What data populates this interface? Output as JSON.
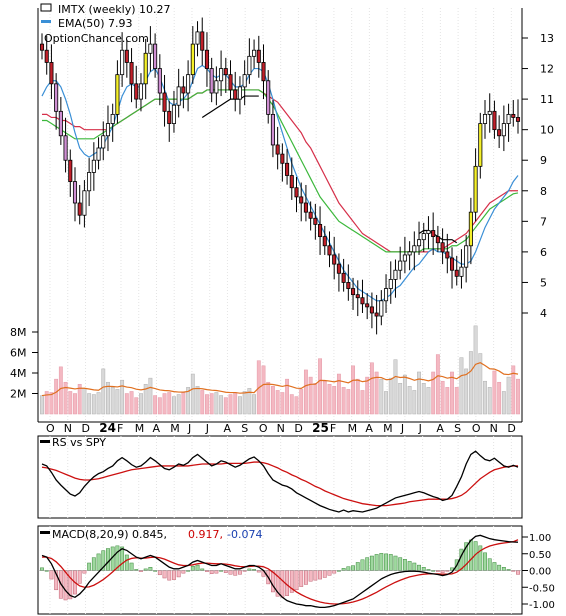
{
  "header": {
    "ticker_line": "IMTX (weekly) 10.27",
    "ema_line": "EMA(50) 7.93",
    "watermark": "OptionChance.com"
  },
  "price_axis": {
    "ticks": [
      "13",
      "12",
      "11",
      "10",
      "9",
      "8",
      "7",
      "6",
      "5",
      "4"
    ]
  },
  "volume_axis": {
    "ticks": [
      "8M",
      "6M",
      "4M",
      "2M"
    ]
  },
  "months": {
    "labels": [
      "O",
      "N",
      "D",
      "24",
      "F",
      "M",
      "A",
      "M",
      "J",
      "J",
      "A",
      "S",
      "O",
      "N",
      "D",
      "25",
      "F",
      "M",
      "A",
      "M",
      "J",
      "J",
      "A",
      "S",
      "O",
      "N",
      "D"
    ]
  },
  "rs_panel": {
    "title": "RS vs SPY"
  },
  "macd_panel": {
    "title": "MACD(8,20,9) 0.845,",
    "signal_value": "0.917,",
    "hist_value": "-0.074",
    "ticks": [
      "1.00",
      "0.50",
      "0.00",
      "-0.50",
      "-1.00"
    ]
  },
  "colors": {
    "ema_short": "#3a8fd6",
    "ema_mid": "#3cb83c",
    "ema_long": "#d6304a",
    "ema_black": "#000000",
    "candle_up": "#ffffff",
    "candle_down": "#c0202a",
    "candle_yellow": "#f5f02a",
    "candle_purple": "#cf8fd2",
    "volume_up": "#d8d8d8",
    "volume_down": "#f4b8c2",
    "volume_avg": "#e07020",
    "rs_line": "#000000",
    "rs_avg": "#cc1010",
    "macd_line": "#000000",
    "macd_signal": "#cc1010",
    "hist_pos": "#9fd89f",
    "hist_neg": "#f4b8c2",
    "signal_text": "#cc0000",
    "hist_text": "#1a40b0"
  },
  "chart_data": {
    "type": "candlestick",
    "title": "IMTX (weekly) 10.27",
    "y_range": [
      3.5,
      13.5
    ],
    "volume_range_M": [
      0,
      9
    ],
    "ema50_last": 7.93,
    "close_last": 10.27,
    "weekly_close": [
      12.6,
      12.2,
      11.5,
      10.6,
      9.8,
      9.0,
      8.3,
      7.6,
      7.2,
      8.0,
      8.6,
      9.0,
      9.4,
      9.8,
      10.2,
      10.5,
      11.8,
      12.6,
      12.2,
      11.5,
      11.0,
      11.5,
      12.5,
      12.8,
      12.0,
      11.2,
      10.6,
      10.2,
      10.8,
      11.4,
      11.2,
      11.8,
      12.8,
      13.2,
      12.6,
      12.0,
      11.2,
      11.6,
      12.0,
      11.8,
      11.3,
      11.0,
      11.4,
      11.8,
      12.4,
      12.6,
      12.2,
      11.6,
      10.5,
      9.5,
      9.2,
      8.9,
      8.5,
      8.1,
      7.8,
      7.6,
      7.3,
      7.1,
      6.9,
      6.5,
      6.2,
      5.9,
      5.6,
      5.3,
      5.0,
      4.8,
      4.6,
      4.5,
      4.3,
      4.2,
      4.0,
      3.9,
      4.4,
      4.8,
      5.1,
      5.4,
      5.7,
      5.9,
      6.0,
      6.2,
      6.4,
      6.6,
      6.7,
      6.5,
      6.3,
      6.0,
      5.8,
      5.4,
      5.2,
      5.5,
      6.2,
      7.3,
      8.8,
      10.2,
      10.5,
      10.6,
      10.0,
      9.8,
      10.2,
      10.5,
      10.4,
      10.27
    ],
    "volume_M": [
      1.8,
      2.2,
      2.1,
      3.4,
      4.6,
      3.1,
      2.2,
      2.0,
      2.9,
      2.5,
      2.0,
      1.9,
      2.1,
      4.4,
      3.1,
      2.6,
      2.4,
      3.3,
      2.0,
      2.2,
      1.6,
      2.0,
      2.9,
      3.5,
      1.8,
      1.6,
      2.0,
      2.1,
      1.7,
      1.9,
      2.1,
      2.6,
      3.9,
      2.7,
      2.3,
      1.9,
      2.0,
      2.1,
      1.8,
      1.6,
      1.9,
      2.1,
      1.7,
      2.2,
      2.5,
      1.9,
      5.2,
      4.7,
      3.1,
      2.7,
      2.3,
      2.1,
      3.4,
      1.9,
      1.7,
      2.4,
      4.3,
      3.6,
      3.0,
      5.4,
      3.2,
      2.9,
      2.7,
      3.9,
      2.6,
      2.4,
      4.7,
      3.4,
      2.3,
      3.6,
      5.0,
      4.1,
      3.4,
      2.2,
      3.5,
      5.3,
      3.0,
      3.8,
      2.7,
      2.3,
      4.1,
      3.0,
      2.6,
      4.1,
      5.8,
      3.2,
      2.6,
      4.1,
      2.6,
      5.5,
      4.4,
      6.1,
      8.6,
      5.9,
      3.2,
      2.6,
      4.2,
      3.1,
      2.2,
      3.6,
      4.7,
      3.4
    ],
    "ema_short": [
      11.1,
      11.4,
      11.6,
      11.6,
      11.4,
      11.0,
      10.5,
      9.9,
      9.4,
      9.2,
      9.1,
      9.2,
      9.3,
      9.5,
      9.8,
      10.1,
      10.6,
      11.1,
      11.4,
      11.5,
      11.4,
      11.4,
      11.6,
      11.9,
      12.0,
      11.7,
      11.3,
      10.9,
      10.8,
      10.9,
      11.0,
      11.2,
      11.6,
      12.0,
      12.1,
      12.0,
      11.8,
      11.7,
      11.8,
      11.8,
      11.6,
      11.4,
      11.4,
      11.5,
      11.8,
      12.0,
      12.0,
      11.9,
      11.5,
      11.0,
      10.4,
      9.9,
      9.4,
      8.9,
      8.5,
      8.1,
      7.8,
      7.5,
      7.2,
      6.9,
      6.6,
      6.3,
      6.0,
      5.7,
      5.4,
      5.2,
      5.0,
      4.8,
      4.7,
      4.6,
      4.5,
      4.4,
      4.4,
      4.5,
      4.6,
      4.8,
      4.9,
      5.1,
      5.3,
      5.5,
      5.6,
      5.8,
      6.0,
      6.1,
      6.0,
      6.0,
      5.9,
      5.8,
      5.7,
      5.6,
      5.6,
      5.7,
      6.0,
      6.4,
      6.8,
      7.1,
      7.4,
      7.6,
      7.8,
      8.0,
      8.3,
      8.5
    ],
    "ema_mid": [
      10.3,
      10.3,
      10.2,
      10.1,
      10.0,
      9.9,
      9.8,
      9.7,
      9.7,
      9.7,
      9.7,
      9.7,
      9.8,
      9.9,
      10.0,
      10.1,
      10.2,
      10.3,
      10.4,
      10.5,
      10.6,
      10.7,
      10.8,
      10.9,
      11.0,
      11.0,
      11.0,
      11.0,
      11.0,
      11.0,
      11.0,
      11.0,
      11.1,
      11.2,
      11.2,
      11.3,
      11.3,
      11.3,
      11.3,
      11.3,
      11.3,
      11.3,
      11.3,
      11.3,
      11.3,
      11.3,
      11.3,
      11.2,
      11.0,
      10.8,
      10.5,
      10.2,
      9.9,
      9.6,
      9.3,
      9.0,
      8.7,
      8.4,
      8.1,
      7.8,
      7.6,
      7.4,
      7.2,
      7.0,
      6.9,
      6.8,
      6.7,
      6.6,
      6.5,
      6.4,
      6.3,
      6.2,
      6.1,
      6.0,
      6.0,
      6.0,
      6.0,
      6.0,
      6.0,
      6.0,
      6.0,
      6.1,
      6.1,
      6.1,
      6.1,
      6.1,
      6.1,
      6.2,
      6.2,
      6.3,
      6.4,
      6.6,
      6.8,
      7.0,
      7.2,
      7.4,
      7.5,
      7.6,
      7.7,
      7.8,
      7.9,
      7.93
    ],
    "ema_long": [
      10.5,
      10.5,
      10.4,
      10.4,
      10.3,
      10.3,
      10.2,
      10.1,
      10.1,
      10.0,
      10.0,
      10.0,
      10.0,
      10.0,
      10.0,
      10.1,
      10.2,
      10.3,
      10.4,
      10.5,
      10.6,
      10.7,
      10.8,
      10.9,
      11.0,
      11.0,
      11.0,
      11.0,
      11.0,
      11.0,
      11.0,
      11.0,
      11.1,
      11.2,
      11.2,
      11.3,
      11.3,
      11.3,
      11.3,
      11.3,
      11.3,
      11.3,
      11.3,
      11.3,
      11.3,
      11.3,
      11.3,
      11.2,
      11.1,
      11.0,
      10.9,
      10.7,
      10.5,
      10.3,
      10.1,
      9.9,
      9.6,
      9.4,
      9.1,
      8.8,
      8.5,
      8.2,
      7.9,
      7.6,
      7.4,
      7.2,
      7.0,
      6.8,
      6.6,
      6.5,
      6.4,
      6.3,
      6.2,
      6.1,
      6.0,
      6.0,
      6.0,
      6.0,
      6.0,
      6.0,
      6.0,
      6.0,
      6.0,
      6.1,
      6.1,
      6.1,
      6.2,
      6.3,
      6.4,
      6.5,
      6.6,
      6.8,
      7.0,
      7.2,
      7.4,
      7.6,
      7.7,
      7.8,
      7.9,
      8.0,
      8.0,
      8.0
    ],
    "ema_black": [
      null,
      null,
      null,
      null,
      null,
      null,
      null,
      null,
      null,
      null,
      null,
      null,
      null,
      null,
      null,
      null,
      null,
      null,
      null,
      null,
      null,
      null,
      null,
      null,
      null,
      null,
      null,
      null,
      null,
      null,
      null,
      null,
      null,
      null,
      10.4,
      10.5,
      10.6,
      10.7,
      10.8,
      10.9,
      11.0,
      11.0,
      11.0,
      11.1,
      11.1,
      11.1,
      11.1,
      null,
      null,
      null,
      null,
      null,
      null,
      null,
      null,
      null,
      null,
      null,
      null,
      null,
      null,
      null,
      null,
      null,
      null,
      null,
      null,
      null,
      null,
      null,
      null,
      null,
      null,
      null,
      null,
      null,
      null,
      null,
      null,
      null,
      6.6,
      6.7,
      6.7,
      6.6,
      6.5,
      6.4,
      6.4,
      6.4,
      6.3,
      null,
      null,
      null,
      null,
      null,
      null,
      null,
      null,
      null,
      null,
      null,
      null,
      null
    ],
    "rs_vs_spy": [
      0.75,
      0.72,
      0.62,
      0.5,
      0.42,
      0.35,
      0.28,
      0.25,
      0.3,
      0.4,
      0.48,
      0.55,
      0.6,
      0.63,
      0.68,
      0.72,
      0.8,
      0.85,
      0.8,
      0.74,
      0.7,
      0.72,
      0.78,
      0.85,
      0.8,
      0.74,
      0.68,
      0.66,
      0.7,
      0.75,
      0.73,
      0.77,
      0.85,
      0.9,
      0.84,
      0.78,
      0.72,
      0.75,
      0.8,
      0.78,
      0.74,
      0.7,
      0.73,
      0.78,
      0.83,
      0.86,
      0.8,
      0.72,
      0.6,
      0.5,
      0.46,
      0.42,
      0.4,
      0.36,
      0.3,
      0.26,
      0.22,
      0.18,
      0.14,
      0.1,
      0.07,
      0.04,
      0.02,
      0.0,
      0.03,
      0.0,
      0.02,
      0.01,
      0.0,
      0.02,
      0.04,
      0.06,
      0.1,
      0.14,
      0.18,
      0.22,
      0.24,
      0.26,
      0.28,
      0.3,
      0.32,
      0.3,
      0.27,
      0.24,
      0.22,
      0.18,
      0.2,
      0.26,
      0.4,
      0.55,
      0.75,
      0.9,
      0.95,
      0.88,
      0.82,
      0.8,
      0.84,
      0.78,
      0.72,
      0.7,
      0.73,
      0.7
    ],
    "rs_avg": [
      0.7,
      0.69,
      0.67,
      0.65,
      0.62,
      0.59,
      0.56,
      0.53,
      0.51,
      0.5,
      0.5,
      0.51,
      0.52,
      0.54,
      0.56,
      0.58,
      0.6,
      0.62,
      0.64,
      0.66,
      0.67,
      0.68,
      0.69,
      0.7,
      0.71,
      0.72,
      0.72,
      0.72,
      0.72,
      0.72,
      0.72,
      0.72,
      0.73,
      0.74,
      0.75,
      0.75,
      0.75,
      0.75,
      0.75,
      0.76,
      0.76,
      0.76,
      0.76,
      0.76,
      0.77,
      0.78,
      0.78,
      0.77,
      0.75,
      0.72,
      0.69,
      0.65,
      0.62,
      0.58,
      0.55,
      0.51,
      0.48,
      0.44,
      0.4,
      0.37,
      0.33,
      0.3,
      0.27,
      0.24,
      0.21,
      0.19,
      0.17,
      0.15,
      0.13,
      0.12,
      0.11,
      0.1,
      0.1,
      0.1,
      0.11,
      0.12,
      0.13,
      0.14,
      0.16,
      0.17,
      0.18,
      0.19,
      0.2,
      0.2,
      0.2,
      0.2,
      0.2,
      0.21,
      0.23,
      0.26,
      0.31,
      0.38,
      0.45,
      0.52,
      0.57,
      0.62,
      0.66,
      0.68,
      0.7,
      0.71,
      0.72,
      0.72
    ],
    "macd": [
      0.45,
      0.4,
      0.2,
      -0.1,
      -0.4,
      -0.6,
      -0.75,
      -0.8,
      -0.7,
      -0.55,
      -0.35,
      -0.2,
      -0.05,
      0.1,
      0.25,
      0.4,
      0.55,
      0.65,
      0.6,
      0.5,
      0.4,
      0.35,
      0.4,
      0.45,
      0.4,
      0.3,
      0.2,
      0.1,
      0.05,
      0.05,
      0.1,
      0.15,
      0.25,
      0.3,
      0.25,
      0.2,
      0.15,
      0.15,
      0.2,
      0.15,
      0.1,
      0.05,
      0.05,
      0.1,
      0.15,
      0.15,
      0.1,
      0.0,
      -0.2,
      -0.45,
      -0.65,
      -0.8,
      -0.9,
      -0.95,
      -1.0,
      -1.02,
      -1.05,
      -1.05,
      -1.08,
      -1.1,
      -1.1,
      -1.08,
      -1.05,
      -1.0,
      -0.95,
      -0.9,
      -0.85,
      -0.75,
      -0.65,
      -0.55,
      -0.45,
      -0.35,
      -0.25,
      -0.18,
      -0.12,
      -0.08,
      -0.05,
      -0.03,
      -0.02,
      -0.02,
      -0.03,
      -0.05,
      -0.08,
      -0.1,
      -0.12,
      -0.15,
      -0.12,
      -0.05,
      0.15,
      0.45,
      0.7,
      0.9,
      1.02,
      1.05,
      1.0,
      0.95,
      0.92,
      0.9,
      0.88,
      0.86,
      0.85,
      0.845
    ],
    "macd_signal": [
      0.4,
      0.4,
      0.36,
      0.26,
      0.12,
      -0.05,
      -0.22,
      -0.36,
      -0.46,
      -0.5,
      -0.49,
      -0.44,
      -0.36,
      -0.27,
      -0.16,
      -0.04,
      0.09,
      0.21,
      0.31,
      0.36,
      0.38,
      0.37,
      0.37,
      0.39,
      0.4,
      0.38,
      0.34,
      0.28,
      0.22,
      0.17,
      0.15,
      0.15,
      0.17,
      0.2,
      0.22,
      0.22,
      0.21,
      0.2,
      0.2,
      0.19,
      0.17,
      0.14,
      0.12,
      0.11,
      0.12,
      0.13,
      0.13,
      0.11,
      0.05,
      -0.05,
      -0.17,
      -0.3,
      -0.43,
      -0.54,
      -0.64,
      -0.72,
      -0.79,
      -0.85,
      -0.9,
      -0.94,
      -0.97,
      -0.99,
      -1.0,
      -1.0,
      -0.99,
      -0.97,
      -0.94,
      -0.9,
      -0.85,
      -0.79,
      -0.72,
      -0.65,
      -0.57,
      -0.49,
      -0.42,
      -0.35,
      -0.29,
      -0.24,
      -0.19,
      -0.16,
      -0.13,
      -0.11,
      -0.1,
      -0.1,
      -0.1,
      -0.11,
      -0.11,
      -0.1,
      -0.05,
      0.05,
      0.18,
      0.33,
      0.48,
      0.59,
      0.67,
      0.73,
      0.77,
      0.8,
      0.82,
      0.84,
      0.86,
      0.917
    ],
    "macd_hist_last": -0.074
  }
}
